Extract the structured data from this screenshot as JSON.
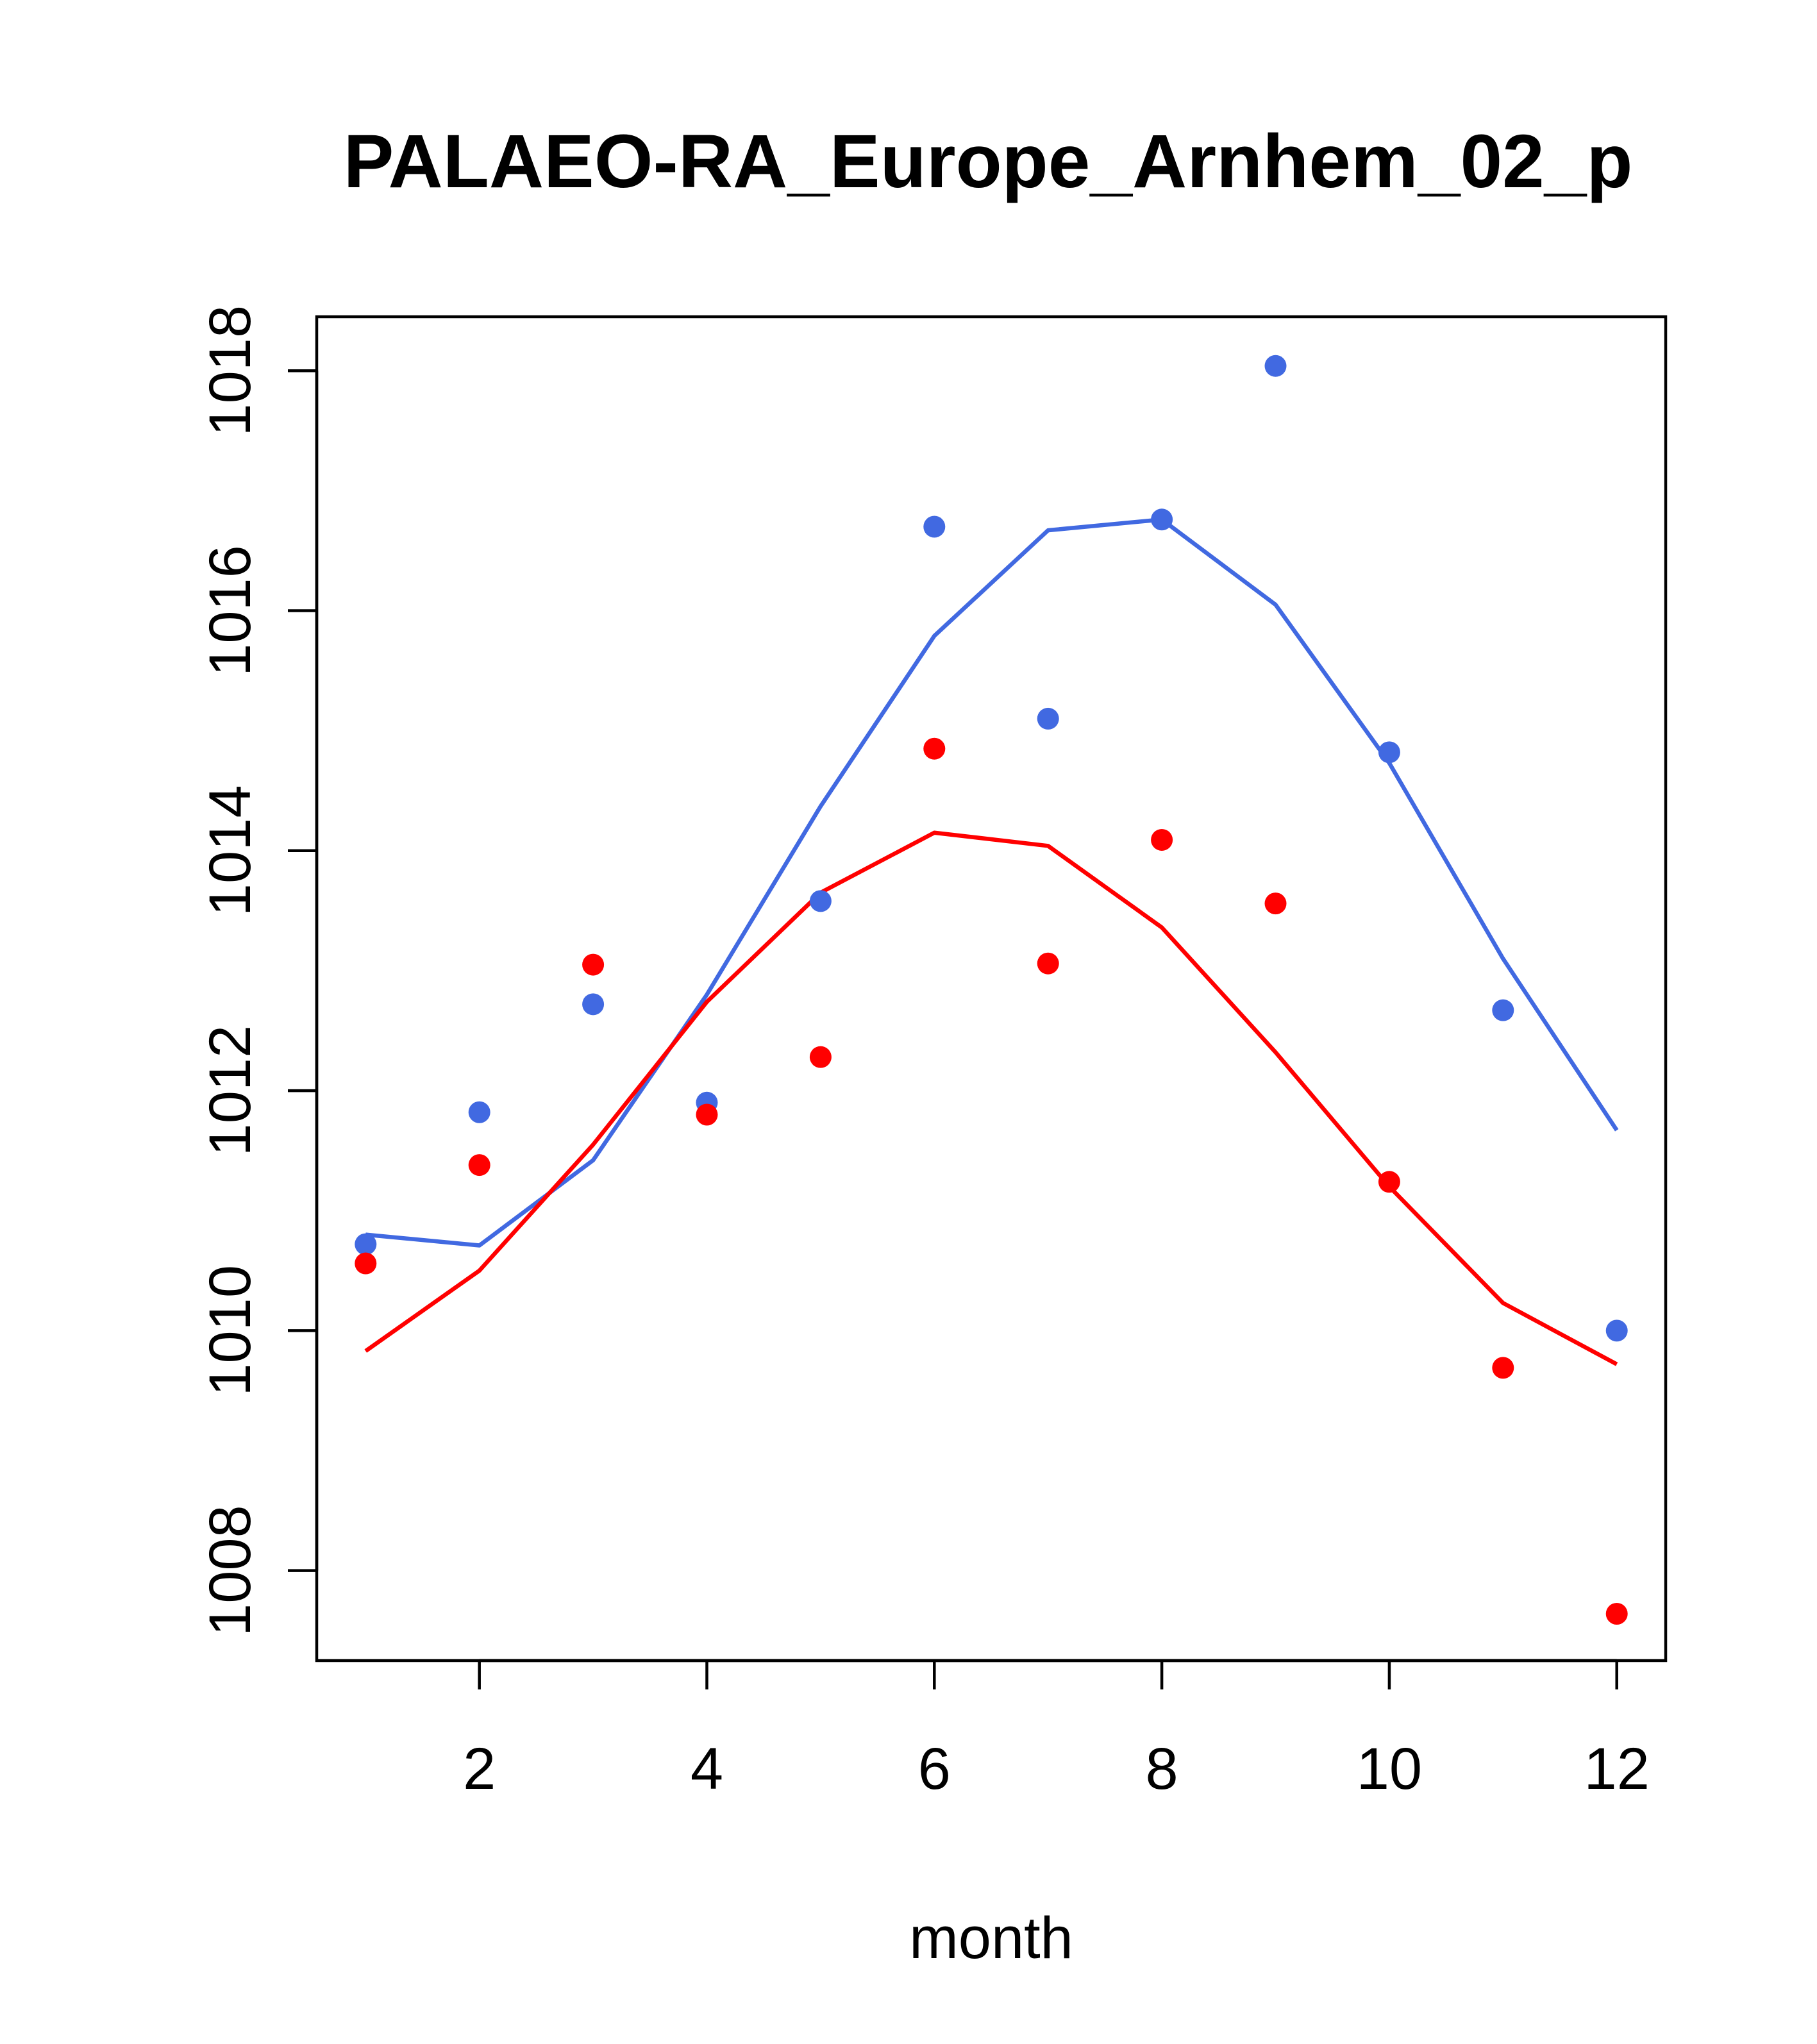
{
  "chart_data": {
    "type": "line",
    "title": "PALAEO-RA_Europe_Arnhem_02_p",
    "xlabel": "month",
    "ylabel": "",
    "xlim": [
      0.57,
      12.43
    ],
    "ylim": [
      1007.25,
      1018.45
    ],
    "x_ticks": [
      2,
      4,
      6,
      8,
      10,
      12
    ],
    "y_ticks": [
      1008,
      1010,
      1012,
      1014,
      1016,
      1018
    ],
    "grid": false,
    "legend": "none",
    "x": [
      1,
      2,
      3,
      4,
      5,
      6,
      7,
      8,
      9,
      10,
      11,
      12
    ],
    "series": [
      {
        "name": "blue-points",
        "kind": "points",
        "color": "#4169E1",
        "values": [
          1010.72,
          1011.82,
          1012.72,
          1011.9,
          1013.58,
          1016.7,
          1015.1,
          1016.76,
          1018.04,
          1014.82,
          1012.67,
          1010.0
        ]
      },
      {
        "name": "red-points",
        "kind": "points",
        "color": "#FF0000",
        "values": [
          1010.56,
          1011.38,
          1013.05,
          1011.8,
          1012.28,
          1014.85,
          1013.06,
          1014.09,
          1013.56,
          1011.24,
          1009.69,
          1007.64
        ]
      },
      {
        "name": "blue-line",
        "kind": "line",
        "color": "#4169E1",
        "values": [
          1010.8,
          1010.71,
          1011.42,
          1012.8,
          1014.37,
          1015.79,
          1016.67,
          1016.76,
          1016.05,
          1014.73,
          1013.1,
          1011.67
        ]
      },
      {
        "name": "red-line",
        "kind": "line",
        "color": "#FF0000",
        "values": [
          1009.83,
          1010.5,
          1011.55,
          1012.74,
          1013.65,
          1014.15,
          1014.04,
          1013.36,
          1012.32,
          1011.2,
          1010.23,
          1009.72
        ]
      }
    ]
  }
}
